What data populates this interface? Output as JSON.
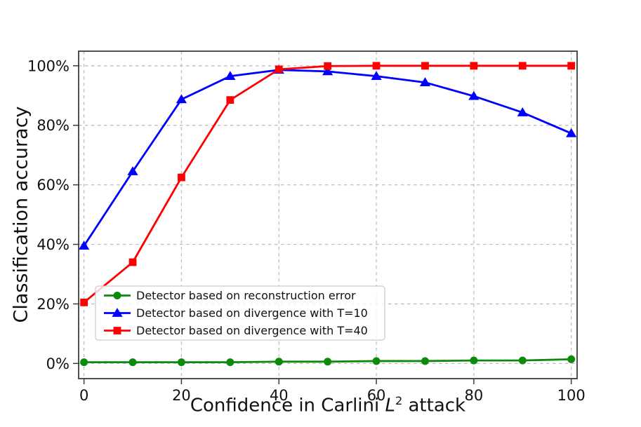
{
  "chart_data": {
    "type": "line",
    "xlabel": {
      "prefix": "Confidence in Carlini ",
      "math_var": "L",
      "math_sup": "2",
      "suffix": " attack"
    },
    "ylabel": "Classification accuracy",
    "x": [
      0,
      10,
      20,
      30,
      40,
      50,
      60,
      70,
      80,
      90,
      100
    ],
    "series": [
      {
        "name": "Detector based on reconstruction error",
        "slug": "reconstruction-error",
        "color": "#0c8a0c",
        "marker": "circle",
        "values": [
          0.4,
          0.4,
          0.4,
          0.4,
          0.6,
          0.6,
          0.8,
          0.8,
          1.0,
          1.0,
          1.4
        ]
      },
      {
        "name": "Detector based on divergence with T=10",
        "slug": "divergence-t10",
        "color": "#0000ff",
        "marker": "triangle",
        "values": [
          39.5,
          64.5,
          88.7,
          96.5,
          98.6,
          98.1,
          96.5,
          94.4,
          89.8,
          84.3,
          77.3
        ]
      },
      {
        "name": "Detector based on divergence with T=40",
        "slug": "divergence-t40",
        "color": "#ff0000",
        "marker": "square",
        "values": [
          20.5,
          34.0,
          62.5,
          88.5,
          98.8,
          99.9,
          100,
          100,
          100,
          100,
          100
        ]
      }
    ],
    "x_tick_labels": [
      "0",
      "20",
      "40",
      "60",
      "80",
      "100"
    ],
    "x_tick_values": [
      0,
      20,
      40,
      60,
      80,
      100
    ],
    "y_tick_labels": [
      "0%",
      "20%",
      "40%",
      "60%",
      "80%",
      "100%"
    ],
    "y_tick_values": [
      0,
      20,
      40,
      60,
      80,
      100
    ],
    "xlim": [
      -1.1,
      101.2
    ],
    "ylim": [
      -5.1,
      104.9
    ],
    "grid": true,
    "legend_position": "lower-left-inside",
    "colors": {
      "grid": "#bfbfbf",
      "spine": "#3c3c3c",
      "text": "#111111",
      "legend_border": "#cccccc",
      "legend_fill": "rgba(255,255,255,0.8)"
    }
  }
}
